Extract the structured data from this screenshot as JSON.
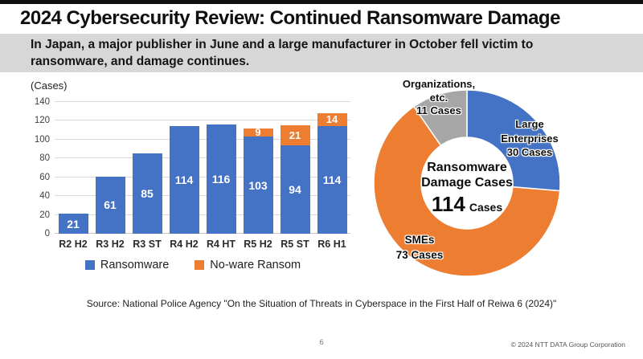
{
  "slide": {
    "title": "2024 Cybersecurity Review: Continued Ransomware Damage",
    "subtitle_lines": [
      "In Japan, a major publisher in June and a large manufacturer in October fell victim to",
      "ransomware, and damage continues."
    ],
    "source": "Source: National Police Agency \"On the Situation of Threats in Cyberspace in the First Half of Reiwa 6 (2024)\"",
    "page_number": "6",
    "copyright": "© 2024 NTT DATA Group Corporation"
  },
  "colors": {
    "ransomware_blue": "#4472C4",
    "noware_orange": "#ED7D31",
    "organizations_gray": "#A6A6A6",
    "gridline": "#D9D9D9",
    "subtitle_band": "#D7D7D7"
  },
  "chart_data": [
    {
      "type": "bar",
      "stacked": true,
      "ylabel": "(Cases)",
      "ylim": [
        0,
        140
      ],
      "ytick_step": 20,
      "grid": true,
      "legend_position": "bottom",
      "categories": [
        "R2 H2",
        "R3 H2",
        "R3 ST",
        "R4 H2",
        "R4 HT",
        "R5 H2",
        "R5 ST",
        "R6 H1"
      ],
      "series": [
        {
          "name": "Ransomware",
          "color": "#4472C4",
          "values": [
            21,
            61,
            85,
            114,
            116,
            103,
            94,
            114
          ]
        },
        {
          "name": "No-ware Ransom",
          "color": "#ED7D31",
          "values": [
            0,
            0,
            0,
            0,
            0,
            9,
            21,
            14
          ]
        }
      ]
    },
    {
      "type": "donut",
      "title_lines": [
        "Ransomware",
        "Damage Cases"
      ],
      "total_value": "114",
      "total_unit": "Cases",
      "slices": [
        {
          "label_lines": [
            "Large",
            "Enterprises"
          ],
          "cases": "30 Cases",
          "value": 30,
          "color": "#4472C4"
        },
        {
          "label_lines": [
            "SMEs"
          ],
          "cases": "73 Cases",
          "value": 73,
          "color": "#ED7D31"
        },
        {
          "label_lines": [
            "Organizations,",
            "etc."
          ],
          "cases": "11 Cases",
          "value": 11,
          "color": "#A6A6A6"
        }
      ]
    }
  ]
}
